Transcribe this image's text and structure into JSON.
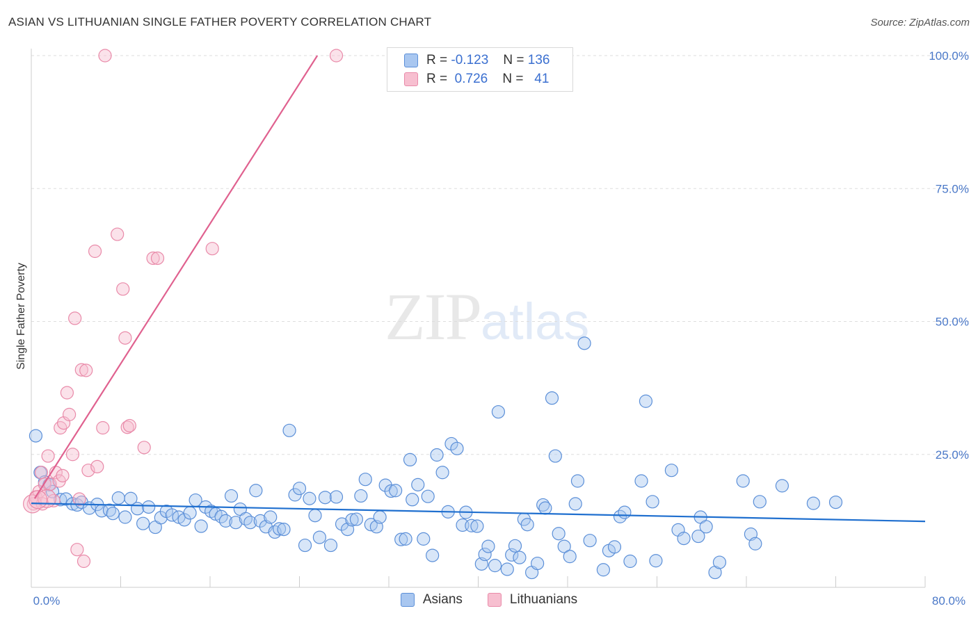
{
  "title": "ASIAN VS LITHUANIAN SINGLE FATHER POVERTY CORRELATION CHART",
  "source": "Source: ZipAtlas.com",
  "watermark": {
    "zip": "ZIP",
    "atlas": "atlas"
  },
  "legend": {
    "r_label": "R =",
    "n_label": "N =",
    "asian": {
      "r": "-0.123",
      "n": "136"
    },
    "lithuanian": {
      "r": "0.726",
      "n": "41"
    }
  },
  "bottom_legend": {
    "asian": "Asians",
    "lithuanian": "Lithuanians"
  },
  "colors": {
    "asian_fill": "#a9c7f0",
    "asian_stroke": "#5b8fd8",
    "asian_line": "#1f6fcf",
    "lith_fill": "#f7bfd0",
    "lith_stroke": "#e98aa9",
    "lith_line": "#e0618f",
    "grid": "#dddddd",
    "tick_text": "#4a78c8"
  },
  "chart_data": {
    "type": "scatter",
    "title": "ASIAN VS LITHUANIAN SINGLE FATHER POVERTY CORRELATION CHART",
    "xlabel": "",
    "ylabel": "Single Father Poverty",
    "xlim": [
      0,
      80
    ],
    "ylim": [
      0,
      105
    ],
    "x_tick_labels": [
      {
        "value": 0,
        "label": "0.0%"
      },
      {
        "value": 80,
        "label": "80.0%"
      }
    ],
    "x_minor_ticks": [
      8,
      16,
      24,
      32,
      40,
      48,
      56,
      64,
      72,
      80
    ],
    "y_ticks": [
      {
        "value": 25,
        "label": "25.0%"
      },
      {
        "value": 50,
        "label": "50.0%"
      },
      {
        "value": 75,
        "label": "75.0%"
      },
      {
        "value": 100,
        "label": "100.0%"
      }
    ],
    "series": [
      {
        "name": "Asians",
        "R": -0.123,
        "N": 136,
        "trend": {
          "x": [
            0,
            80
          ],
          "y": [
            15.8,
            12.4
          ]
        },
        "points": [
          [
            0.4,
            28.5
          ],
          [
            0.8,
            21.6
          ],
          [
            1.2,
            19.8
          ],
          [
            1.6,
            19.3
          ],
          [
            1.9,
            18.0
          ],
          [
            2.6,
            16.5
          ],
          [
            3.1,
            16.6
          ],
          [
            3.7,
            15.7
          ],
          [
            4.1,
            15.5
          ],
          [
            4.5,
            16.0
          ],
          [
            5.2,
            14.9
          ],
          [
            5.9,
            15.6
          ],
          [
            6.3,
            14.4
          ],
          [
            7.0,
            14.5
          ],
          [
            7.3,
            13.9
          ],
          [
            7.8,
            16.8
          ],
          [
            8.4,
            13.2
          ],
          [
            8.9,
            16.7
          ],
          [
            9.5,
            14.8
          ],
          [
            10.0,
            12.0
          ],
          [
            10.5,
            15.1
          ],
          [
            11.1,
            11.3
          ],
          [
            11.6,
            13.1
          ],
          [
            12.1,
            14.3
          ],
          [
            12.6,
            13.6
          ],
          [
            13.2,
            13.2
          ],
          [
            13.7,
            12.7
          ],
          [
            14.2,
            14.0
          ],
          [
            14.7,
            16.4
          ],
          [
            15.2,
            11.5
          ],
          [
            15.6,
            15.1
          ],
          [
            16.1,
            14.3
          ],
          [
            16.5,
            13.8
          ],
          [
            17.0,
            13.3
          ],
          [
            17.4,
            12.5
          ],
          [
            17.9,
            17.2
          ],
          [
            18.3,
            12.2
          ],
          [
            18.7,
            14.7
          ],
          [
            19.2,
            12.9
          ],
          [
            19.6,
            12.2
          ],
          [
            20.1,
            18.2
          ],
          [
            20.5,
            12.5
          ],
          [
            21.0,
            11.4
          ],
          [
            21.4,
            13.2
          ],
          [
            21.8,
            10.4
          ],
          [
            22.2,
            11.0
          ],
          [
            22.6,
            10.9
          ],
          [
            23.1,
            29.5
          ],
          [
            23.6,
            17.4
          ],
          [
            24.0,
            18.6
          ],
          [
            24.5,
            7.9
          ],
          [
            24.9,
            16.7
          ],
          [
            25.4,
            13.5
          ],
          [
            25.8,
            9.4
          ],
          [
            26.3,
            16.9
          ],
          [
            26.8,
            7.9
          ],
          [
            27.3,
            17.0
          ],
          [
            27.8,
            11.9
          ],
          [
            28.3,
            10.9
          ],
          [
            28.7,
            12.7
          ],
          [
            29.1,
            12.8
          ],
          [
            29.5,
            17.2
          ],
          [
            29.9,
            20.3
          ],
          [
            30.4,
            11.8
          ],
          [
            30.9,
            11.4
          ],
          [
            31.2,
            13.2
          ],
          [
            31.7,
            19.2
          ],
          [
            32.2,
            18.1
          ],
          [
            32.6,
            18.2
          ],
          [
            33.1,
            9.0
          ],
          [
            33.5,
            9.1
          ],
          [
            33.9,
            24.0
          ],
          [
            34.1,
            16.5
          ],
          [
            34.6,
            19.3
          ],
          [
            35.1,
            9.1
          ],
          [
            35.5,
            17.1
          ],
          [
            35.9,
            6.0
          ],
          [
            36.3,
            24.9
          ],
          [
            36.8,
            21.6
          ],
          [
            37.3,
            14.2
          ],
          [
            37.6,
            27.0
          ],
          [
            38.1,
            26.1
          ],
          [
            38.6,
            11.7
          ],
          [
            38.9,
            14.1
          ],
          [
            39.4,
            11.6
          ],
          [
            39.9,
            11.5
          ],
          [
            40.3,
            4.4
          ],
          [
            40.6,
            6.2
          ],
          [
            40.9,
            7.7
          ],
          [
            41.5,
            4.1
          ],
          [
            41.8,
            33.0
          ],
          [
            42.6,
            3.4
          ],
          [
            43.0,
            6.1
          ],
          [
            43.3,
            7.8
          ],
          [
            43.7,
            5.6
          ],
          [
            44.1,
            12.8
          ],
          [
            44.4,
            11.8
          ],
          [
            44.8,
            2.8
          ],
          [
            45.3,
            4.5
          ],
          [
            45.8,
            15.5
          ],
          [
            46.6,
            35.6
          ],
          [
            46.9,
            24.7
          ],
          [
            46.0,
            14.9
          ],
          [
            47.2,
            10.1
          ],
          [
            47.7,
            7.7
          ],
          [
            48.2,
            5.8
          ],
          [
            48.7,
            15.7
          ],
          [
            48.9,
            20.0
          ],
          [
            49.5,
            45.9
          ],
          [
            50.0,
            8.8
          ],
          [
            51.2,
            3.3
          ],
          [
            51.7,
            6.9
          ],
          [
            52.2,
            7.6
          ],
          [
            52.7,
            13.3
          ],
          [
            53.1,
            14.1
          ],
          [
            53.6,
            4.9
          ],
          [
            55.0,
            35.0
          ],
          [
            54.6,
            20.0
          ],
          [
            55.6,
            16.1
          ],
          [
            55.9,
            5.0
          ],
          [
            57.3,
            22.0
          ],
          [
            57.9,
            10.8
          ],
          [
            58.4,
            9.2
          ],
          [
            59.7,
            9.6
          ],
          [
            59.9,
            13.2
          ],
          [
            60.4,
            11.4
          ],
          [
            61.2,
            2.8
          ],
          [
            61.6,
            4.7
          ],
          [
            63.7,
            20.0
          ],
          [
            64.4,
            10.0
          ],
          [
            64.8,
            8.2
          ],
          [
            65.2,
            16.1
          ],
          [
            67.2,
            19.1
          ],
          [
            70.0,
            15.8
          ],
          [
            72.0,
            16.0
          ]
        ]
      },
      {
        "name": "Lithuanians",
        "R": 0.726,
        "N": 41,
        "trend": {
          "x": [
            0.3,
            25.6
          ],
          "y": [
            16.7,
            100.0
          ]
        },
        "points": [
          [
            0.2,
            15.7
          ],
          [
            0.4,
            17.0
          ],
          [
            0.7,
            18.0
          ],
          [
            0.9,
            21.6
          ],
          [
            1.0,
            15.7
          ],
          [
            1.2,
            19.4
          ],
          [
            1.5,
            24.7
          ],
          [
            1.7,
            19.4
          ],
          [
            2.0,
            16.3
          ],
          [
            2.2,
            21.6
          ],
          [
            2.5,
            20.0
          ],
          [
            2.8,
            21.0
          ],
          [
            2.6,
            30.0
          ],
          [
            2.9,
            30.9
          ],
          [
            3.2,
            36.6
          ],
          [
            3.4,
            32.5
          ],
          [
            3.7,
            25.0
          ],
          [
            3.9,
            50.6
          ],
          [
            4.1,
            7.1
          ],
          [
            4.3,
            16.6
          ],
          [
            4.5,
            40.9
          ],
          [
            4.7,
            4.9
          ],
          [
            4.9,
            40.8
          ],
          [
            5.1,
            22.0
          ],
          [
            5.7,
            63.2
          ],
          [
            5.9,
            22.7
          ],
          [
            6.4,
            30.0
          ],
          [
            6.6,
            100.0
          ],
          [
            7.7,
            66.4
          ],
          [
            8.2,
            56.1
          ],
          [
            8.4,
            46.9
          ],
          [
            8.6,
            30.1
          ],
          [
            8.8,
            30.4
          ],
          [
            10.1,
            26.3
          ],
          [
            10.9,
            61.9
          ],
          [
            11.3,
            61.9
          ],
          [
            16.2,
            63.7
          ],
          [
            27.3,
            100.0
          ],
          [
            0.1,
            15.7
          ],
          [
            1.4,
            16.7
          ],
          [
            0.6,
            16.5
          ]
        ]
      }
    ]
  }
}
